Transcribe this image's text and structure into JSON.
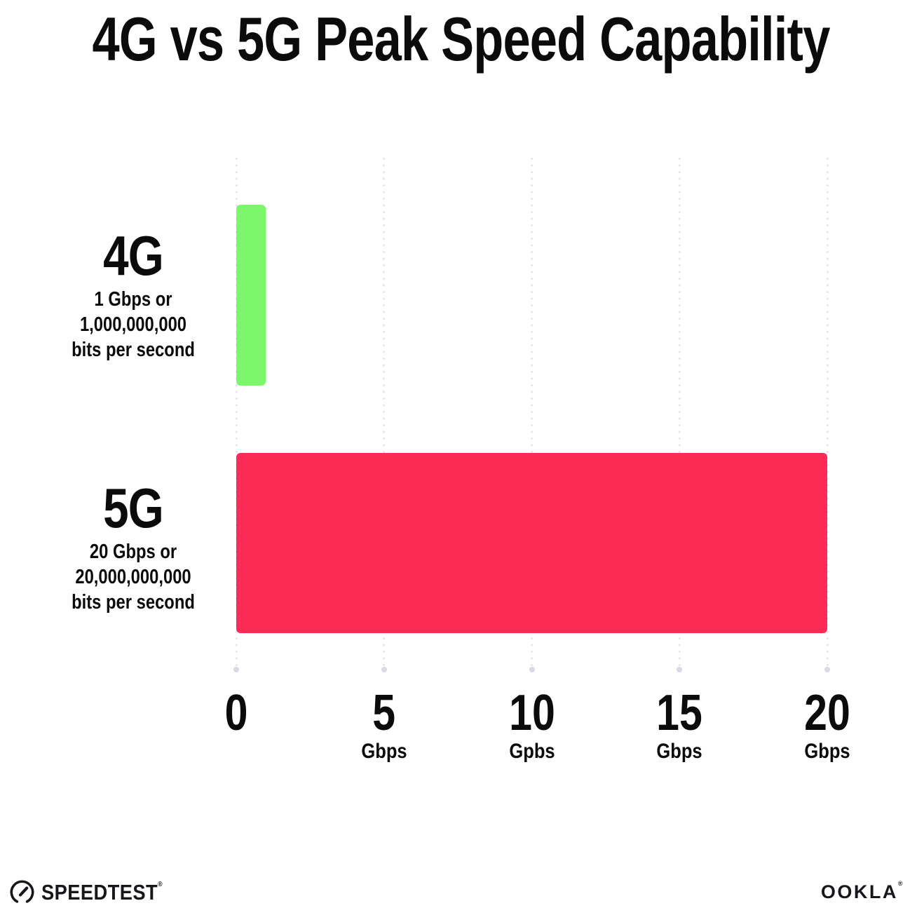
{
  "title": "4G vs 5G Peak Speed Capability",
  "chart_data": {
    "type": "bar",
    "orientation": "horizontal",
    "title": "4G vs 5G Peak Speed Capability",
    "categories": [
      "4G",
      "5G"
    ],
    "values": [
      1,
      20
    ],
    "value_unit": "Gbps",
    "xlim": [
      0,
      20
    ],
    "grid": "vertical-dotted",
    "legend": "none",
    "bar_colors": [
      "#7CF76C",
      "#FB2B56"
    ],
    "row_labels": [
      {
        "name": "4G",
        "sub_lines": [
          "1 Gbps or",
          "1,000,000,000",
          "bits per second"
        ]
      },
      {
        "name": "5G",
        "sub_lines": [
          "20 Gbps or",
          "20,000,000,000",
          "bits per second"
        ]
      }
    ],
    "x_ticks": [
      {
        "value": 0,
        "label": "0",
        "unit": ""
      },
      {
        "value": 5,
        "label": "5",
        "unit": "Gbps"
      },
      {
        "value": 10,
        "label": "10",
        "unit": "Gpbs"
      },
      {
        "value": 15,
        "label": "15",
        "unit": "Gbps"
      },
      {
        "value": 20,
        "label": "20",
        "unit": "Gbps"
      }
    ]
  },
  "footer": {
    "speedtest_label": "SPEEDTEST",
    "speedtest_reg": "®",
    "ookla_label": "OOKLA",
    "ookla_reg": "®"
  },
  "colors": {
    "background": "#FFFFFF",
    "text": "#0B0B0C",
    "bar_4g": "#7CF76C",
    "bar_5g": "#FB2B56",
    "gridline_dot": "#E3E3EE",
    "gridline_end_dot": "#DADAE7",
    "logo": "#16171A"
  }
}
